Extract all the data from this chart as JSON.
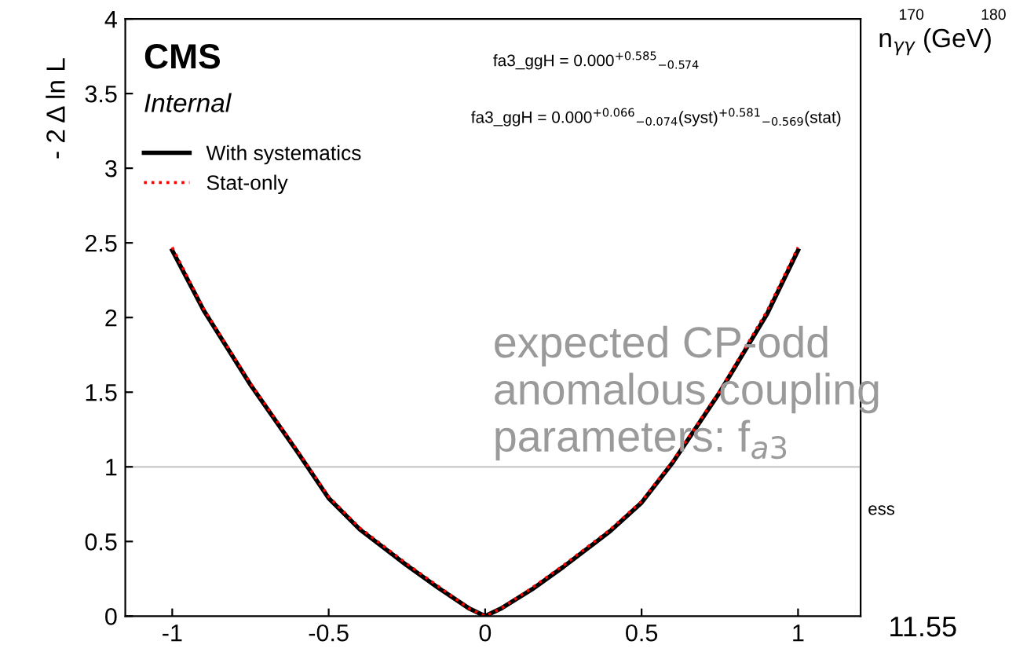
{
  "chart_data": {
    "type": "line",
    "ylabel": "- 2 Δ ln L",
    "x": [
      -1,
      -0.9,
      -0.75,
      -0.6,
      -0.5,
      -0.4,
      -0.25,
      -0.15,
      -0.05,
      0,
      0.05,
      0.15,
      0.25,
      0.4,
      0.5,
      0.6,
      0.75,
      0.9,
      1
    ],
    "series": [
      {
        "name": "With systematics",
        "color": "#000000",
        "line_style": "solid",
        "values": [
          2.45,
          2.05,
          1.55,
          1.1,
          0.79,
          0.58,
          0.34,
          0.19,
          0.05,
          0.0,
          0.05,
          0.18,
          0.33,
          0.57,
          0.76,
          1.03,
          1.5,
          2.02,
          2.45
        ]
      },
      {
        "name": "Stat-only",
        "color": "#ff0000",
        "line_style": "dotted",
        "values": [
          2.47,
          2.06,
          1.56,
          1.11,
          0.8,
          0.59,
          0.35,
          0.2,
          0.05,
          0.0,
          0.05,
          0.19,
          0.34,
          0.58,
          0.77,
          1.04,
          1.51,
          2.04,
          2.47
        ]
      }
    ],
    "xlim": [
      -1.15,
      1.2
    ],
    "xticks": [
      -1,
      -0.5,
      0,
      0.5,
      1
    ],
    "ylim": [
      0,
      4
    ],
    "yticks": [
      0,
      0.5,
      1,
      1.5,
      2,
      2.5,
      3,
      3.5,
      4
    ],
    "ref_lines": [
      {
        "axis": "y",
        "value": 1,
        "color": "#c8c8c8"
      }
    ],
    "legend": "top left",
    "grid": false,
    "annotations": [
      "CMS",
      "Internal",
      "fa3_ggH = 0.000$^{+0.585}$$_{−0.574}$",
      "fa3_ggH = 0.000$^{+0.066}$$_{−0.074}$(syst)$^{+0.581}$$_{−0.569}$(stat)",
      "expected CP-odd anomalous coupling parameters: f$_{a3}$",
      "n$_{γγ}$ (GeV)",
      "170",
      "180",
      "ess",
      "11.55"
    ]
  }
}
